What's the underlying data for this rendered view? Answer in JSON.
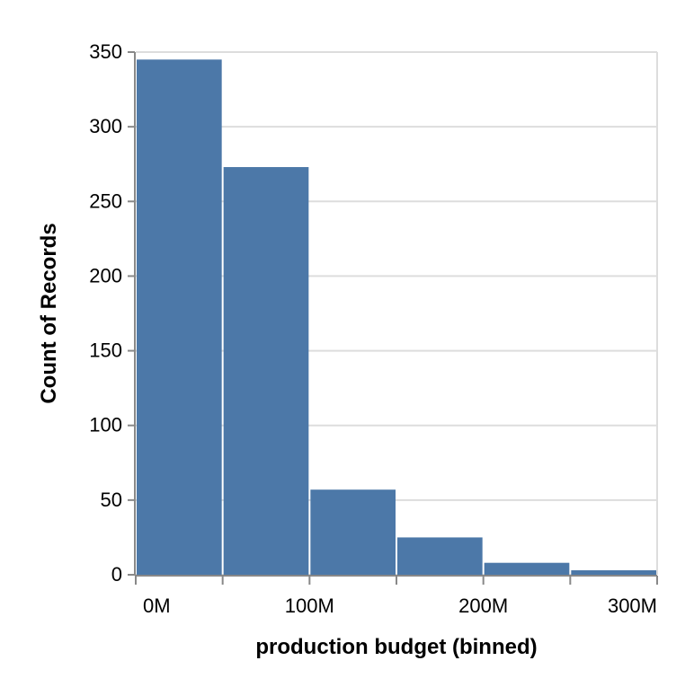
{
  "chart_data": {
    "type": "bar",
    "bar_color": "#4c78a8",
    "grid": true,
    "xlabel": "production budget (binned)",
    "ylabel": "Count of Records",
    "ylim": [
      0,
      350
    ],
    "xlim": [
      0,
      300000000
    ],
    "bins": [
      {
        "start": 0,
        "end": 50000000,
        "value": 345
      },
      {
        "start": 50000000,
        "end": 100000000,
        "value": 273
      },
      {
        "start": 100000000,
        "end": 150000000,
        "value": 57
      },
      {
        "start": 150000000,
        "end": 200000000,
        "value": 25
      },
      {
        "start": 200000000,
        "end": 250000000,
        "value": 8
      },
      {
        "start": 250000000,
        "end": 300000000,
        "value": 3
      }
    ],
    "y_ticks": [
      {
        "value": 0,
        "label": "0"
      },
      {
        "value": 50,
        "label": "50"
      },
      {
        "value": 100,
        "label": "100"
      },
      {
        "value": 150,
        "label": "150"
      },
      {
        "value": 200,
        "label": "200"
      },
      {
        "value": 250,
        "label": "250"
      },
      {
        "value": 300,
        "label": "300"
      },
      {
        "value": 350,
        "label": "350"
      }
    ],
    "x_ticks": [
      {
        "value": 0,
        "label": "0M"
      },
      {
        "value": 50000000,
        "label": ""
      },
      {
        "value": 100000000,
        "label": "100M"
      },
      {
        "value": 150000000,
        "label": ""
      },
      {
        "value": 200000000,
        "label": "200M"
      },
      {
        "value": 250000000,
        "label": ""
      },
      {
        "value": 300000000,
        "label": "300M"
      }
    ]
  }
}
